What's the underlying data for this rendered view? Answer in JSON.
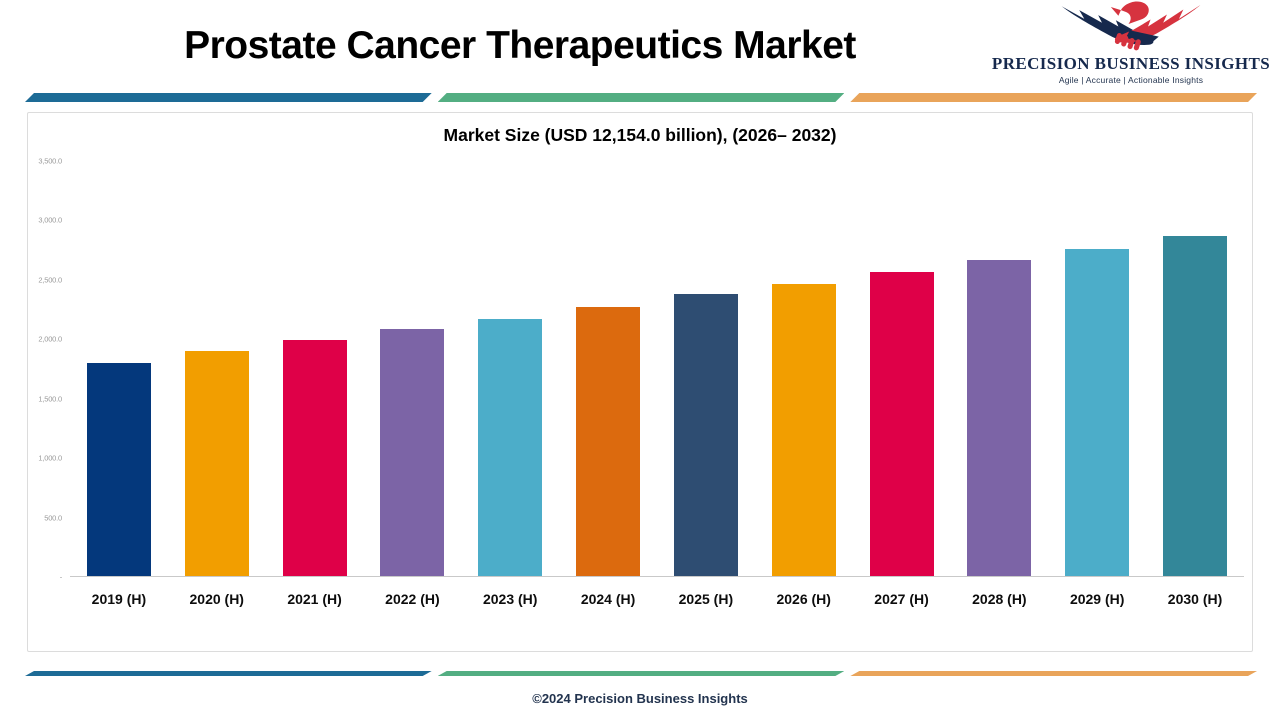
{
  "page": {
    "title": "Prostate Cancer Therapeutics Market",
    "footer": "©2024 Precision Business Insights"
  },
  "logo": {
    "name": "PRECISION BUSINESS INSIGHTS",
    "tagline": "Agile | Accurate | Actionable Insights"
  },
  "theme": {
    "divider_blue": "#1d6b96",
    "divider_green": "#53ae82",
    "divider_orange": "#e9a45a",
    "navy_text": "#23344f",
    "logo_navy": "#16294d",
    "logo_red": "#d6333f",
    "axis_gray": "#c9c9c9",
    "tick_text": "#9a9a9a"
  },
  "chart_data": {
    "type": "bar",
    "title": "Market Size (USD 12,154.0 billion), (2026– 2032)",
    "categories": [
      "2019 (H)",
      "2020 (H)",
      "2021 (H)",
      "2022 (H)",
      "2023 (H)",
      "2024 (H)",
      "2025 (H)",
      "2026 (H)",
      "2027 (H)",
      "2028 (H)",
      "2029 (H)",
      "2030 (H)"
    ],
    "values": [
      1800,
      1895,
      1990,
      2080,
      2170,
      2270,
      2380,
      2465,
      2565,
      2665,
      2760,
      2870
    ],
    "bar_colors": [
      "#04387c",
      "#f29e00",
      "#df0048",
      "#7c64a6",
      "#4cadc9",
      "#dc6a0e",
      "#2e4d72",
      "#f29e00",
      "#df0048",
      "#7c64a6",
      "#4cadc9",
      "#338799"
    ],
    "xlabel": "",
    "ylabel": "",
    "ylim": [
      0,
      3500
    ],
    "y_tick_labels": [
      "3,500.0",
      "3,000.0",
      "2,500.0",
      "2,000.0",
      "1,500.0",
      "1,000.0",
      "500.0",
      "-"
    ],
    "grid": false,
    "legend": "none"
  }
}
